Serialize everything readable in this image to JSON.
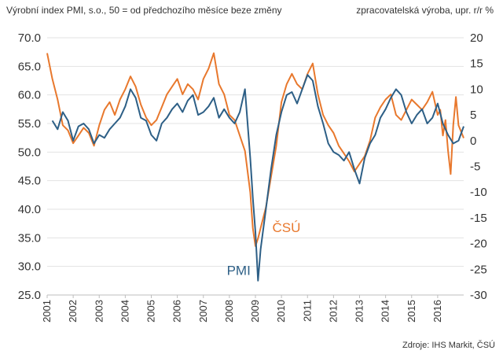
{
  "chart_data": {
    "type": "line",
    "title_left": "Výrobní index PMI, s.o., 50 = od předchozího měsíce beze změny",
    "title_right": "zpracovatelská výroba, upr. r/r %",
    "source": "Zdroje: IHS Markit, ČSÚ",
    "y_left": {
      "min": 25,
      "max": 70,
      "step": 5,
      "ticks": [
        "70.0",
        "65.0",
        "60.0",
        "55.0",
        "50.0",
        "45.0",
        "40.0",
        "35.0",
        "30.0",
        "25.0"
      ]
    },
    "y_right": {
      "min": -30,
      "max": 20,
      "step": 5,
      "ticks": [
        "20",
        "15",
        "10",
        "5",
        "0",
        "-5",
        "-10",
        "-15",
        "-20",
        "-25",
        "-30"
      ]
    },
    "x_ticks": [
      "2001",
      "2002",
      "2003",
      "2004",
      "2005",
      "2006",
      "2007",
      "2008",
      "2009",
      "2010",
      "2011",
      "2012",
      "2013",
      "2014",
      "2015",
      "2016"
    ],
    "series": [
      {
        "name": "PMI",
        "axis": "left",
        "color": "#2d5f86",
        "x": [
          2001.2,
          2001.4,
          2001.6,
          2001.8,
          2002.0,
          2002.2,
          2002.4,
          2002.6,
          2002.8,
          2003.0,
          2003.2,
          2003.4,
          2003.6,
          2003.8,
          2004.0,
          2004.2,
          2004.4,
          2004.6,
          2004.8,
          2005.0,
          2005.2,
          2005.4,
          2005.6,
          2005.8,
          2006.0,
          2006.2,
          2006.4,
          2006.6,
          2006.8,
          2007.0,
          2007.2,
          2007.4,
          2007.6,
          2007.8,
          2008.0,
          2008.2,
          2008.4,
          2008.6,
          2008.8,
          2008.9,
          2009.0,
          2009.1,
          2009.2,
          2009.4,
          2009.6,
          2009.8,
          2010.0,
          2010.2,
          2010.4,
          2010.6,
          2010.8,
          2011.0,
          2011.2,
          2011.4,
          2011.6,
          2011.8,
          2012.0,
          2012.2,
          2012.4,
          2012.6,
          2012.8,
          2013.0,
          2013.2,
          2013.4,
          2013.6,
          2013.8,
          2014.0,
          2014.2,
          2014.4,
          2014.6,
          2014.8,
          2015.0,
          2015.2,
          2015.4,
          2015.6,
          2015.8,
          2016.0,
          2016.2,
          2016.4,
          2016.6,
          2016.8,
          2017.0
        ],
        "y": [
          55.5,
          54.0,
          57.0,
          55.5,
          52.0,
          54.5,
          55.0,
          54.0,
          51.5,
          53.0,
          52.5,
          54.0,
          55.0,
          56.0,
          58.0,
          61.0,
          59.5,
          56.0,
          55.5,
          53.0,
          52.0,
          55.0,
          56.0,
          57.5,
          58.5,
          57.0,
          59.0,
          60.0,
          56.5,
          57.0,
          58.0,
          59.5,
          56.0,
          57.5,
          56.0,
          55.0,
          57.0,
          61.0,
          49.0,
          42.0,
          36.0,
          27.5,
          33.0,
          40.0,
          47.0,
          53.0,
          57.0,
          60.0,
          60.5,
          58.5,
          61.0,
          63.5,
          62.5,
          58.0,
          55.0,
          51.5,
          50.0,
          49.5,
          48.5,
          50.0,
          47.0,
          44.5,
          49.0,
          51.5,
          53.0,
          56.0,
          57.5,
          59.5,
          61.0,
          60.0,
          57.0,
          55.0,
          56.5,
          57.5,
          55.0,
          56.0,
          58.5,
          55.0,
          53.0,
          51.5,
          52.0,
          54.5
        ]
      },
      {
        "name": "ČSÚ",
        "axis": "right",
        "color": "#e8782d",
        "x": [
          2001.0,
          2001.2,
          2001.4,
          2001.6,
          2001.8,
          2002.0,
          2002.2,
          2002.4,
          2002.6,
          2002.8,
          2003.0,
          2003.2,
          2003.4,
          2003.6,
          2003.8,
          2004.0,
          2004.2,
          2004.4,
          2004.6,
          2004.8,
          2005.0,
          2005.2,
          2005.4,
          2005.6,
          2005.8,
          2006.0,
          2006.2,
          2006.4,
          2006.6,
          2006.8,
          2007.0,
          2007.2,
          2007.4,
          2007.6,
          2007.8,
          2008.0,
          2008.2,
          2008.4,
          2008.6,
          2008.8,
          2008.9,
          2009.0,
          2009.1,
          2009.2,
          2009.4,
          2009.6,
          2009.8,
          2010.0,
          2010.2,
          2010.4,
          2010.6,
          2010.8,
          2011.0,
          2011.2,
          2011.4,
          2011.6,
          2011.8,
          2012.0,
          2012.2,
          2012.4,
          2012.6,
          2012.8,
          2013.0,
          2013.2,
          2013.4,
          2013.6,
          2013.8,
          2014.0,
          2014.2,
          2014.4,
          2014.6,
          2014.8,
          2015.0,
          2015.2,
          2015.4,
          2015.6,
          2015.8,
          2016.0,
          2016.1,
          2016.2,
          2016.3,
          2016.4,
          2016.5,
          2016.6,
          2016.7,
          2016.8,
          2017.0
        ],
        "y": [
          17.0,
          12.0,
          8.0,
          3.0,
          2.0,
          -0.5,
          1.0,
          2.5,
          1.5,
          -1.0,
          3.0,
          6.0,
          7.5,
          5.0,
          8.0,
          10.0,
          12.5,
          10.5,
          7.0,
          4.5,
          3.0,
          4.0,
          6.5,
          9.0,
          10.5,
          12.0,
          9.0,
          11.0,
          10.0,
          8.0,
          12.0,
          14.0,
          17.0,
          11.0,
          9.0,
          5.0,
          4.0,
          1.0,
          -2.0,
          -10.0,
          -17.0,
          -20.5,
          -19.0,
          -17.0,
          -13.0,
          -7.0,
          -1.0,
          7.5,
          11.0,
          13.0,
          11.0,
          10.0,
          13.0,
          15.0,
          9.0,
          5.0,
          3.0,
          1.5,
          -1.0,
          -2.5,
          -4.0,
          -6.0,
          -4.5,
          -3.0,
          0.0,
          4.5,
          6.5,
          8.0,
          9.0,
          5.0,
          4.0,
          6.0,
          8.0,
          7.0,
          6.0,
          7.5,
          9.5,
          5.0,
          6.0,
          1.0,
          4.0,
          -2.0,
          -6.5,
          3.0,
          8.5,
          3.0,
          0.5
        ]
      }
    ],
    "annotations": [
      {
        "text": "PMI",
        "series": "PMI"
      },
      {
        "text": "ČSÚ",
        "series": "ČSÚ"
      }
    ]
  }
}
